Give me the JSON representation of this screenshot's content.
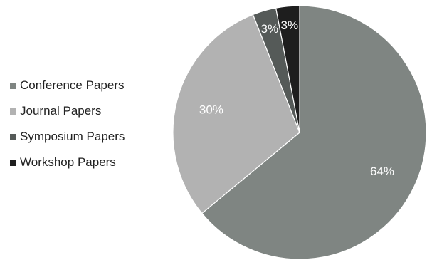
{
  "chart_data": {
    "type": "pie",
    "title": "",
    "legend_position": "left",
    "slices": [
      {
        "name": "Conference Papers",
        "value": 64,
        "label": "64%",
        "color": "#7f8582",
        "label_color": "#ffffff"
      },
      {
        "name": "Journal Papers",
        "value": 30,
        "label": "30%",
        "color": "#b2b2b2",
        "label_color": "#ffffff"
      },
      {
        "name": "Symposium Papers",
        "value": 3,
        "label": "3%",
        "color": "#555a58",
        "label_color": "#ffffff"
      },
      {
        "name": "Workshop Papers",
        "value": 3,
        "label": "3%",
        "color": "#1e1e1e",
        "label_color": "#ffffff"
      }
    ]
  }
}
